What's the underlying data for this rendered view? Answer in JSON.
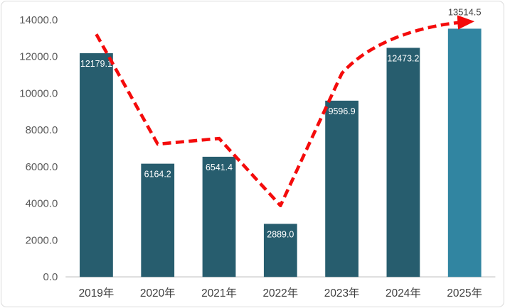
{
  "chart_data": {
    "type": "bar",
    "title": "",
    "xlabel": "",
    "ylabel": "",
    "categories": [
      "2019年",
      "2020年",
      "2021年",
      "2022年",
      "2023年",
      "2024年",
      "2025年"
    ],
    "values": [
      12179.1,
      6164.2,
      6541.4,
      2889.0,
      9596.9,
      12473.2,
      13514.5
    ],
    "value_labels": [
      "12179.1",
      "6164.2",
      "6541.4",
      "2889.0",
      "9596.9",
      "12473.2",
      "13514.5"
    ],
    "highlight_index": 6,
    "ylim": [
      0,
      14000
    ],
    "ytick_values": [
      0,
      2000,
      4000,
      6000,
      8000,
      10000,
      12000,
      14000
    ],
    "ytick_labels": [
      "0.0",
      "2000.0",
      "4000.0",
      "6000.0",
      "8000.0",
      "10000.0",
      "12000.0",
      "14000.0"
    ],
    "grid": false,
    "legend": "none",
    "trend_line": {
      "type": "dashed-arrow",
      "values": [
        13210,
        7230,
        7540,
        3880,
        11080,
        13350,
        13900
      ],
      "color": "#f40b0b"
    },
    "colors": {
      "bar": "#275d6e",
      "bar_highlight": "#3185a1",
      "bar_label": "#ffffff",
      "highlight_label": "#404040",
      "y_tick_label": "#595959",
      "x_tick_label": "#3f3f3f",
      "axis_line": "#d9d9d9",
      "frame_border": "#d9d9d9",
      "background": "#ffffff"
    }
  }
}
